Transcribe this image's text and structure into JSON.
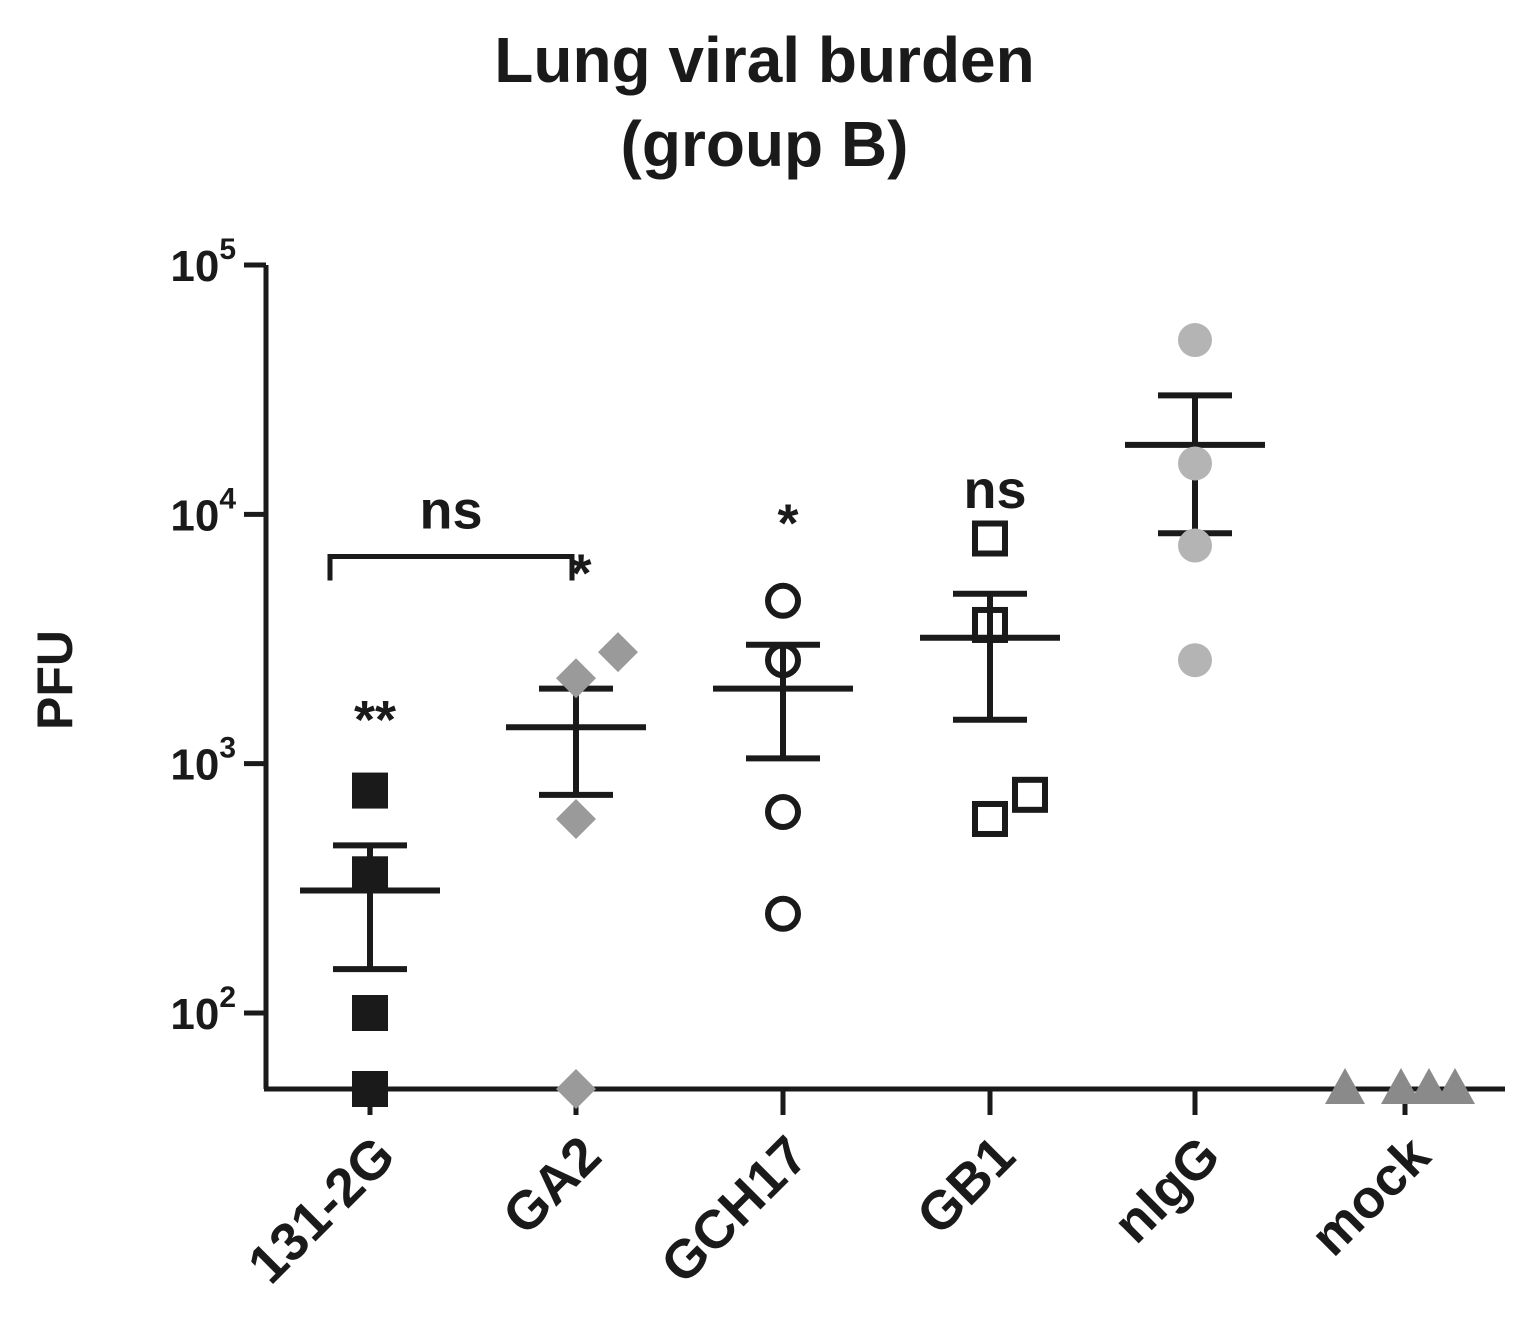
{
  "chart_data": {
    "type": "scatter",
    "title_lines": [
      "Lung viral burden",
      "(group B)"
    ],
    "ylabel": "PFU",
    "yscale": "log",
    "ylim": [
      50,
      100000
    ],
    "yticks": [
      {
        "base": "10",
        "exp": "2",
        "value": 100
      },
      {
        "base": "10",
        "exp": "3",
        "value": 1000
      },
      {
        "base": "10",
        "exp": "4",
        "value": 10000
      },
      {
        "base": "10",
        "exp": "5",
        "value": 100000
      }
    ],
    "categories": [
      "131-2G",
      "GA2",
      "GCH17",
      "GB1",
      "nIgG",
      "mock"
    ],
    "groups": [
      {
        "name": "131-2G",
        "marker": "filled-square",
        "color": "#1a1a1a",
        "points": [
          780,
          360,
          100,
          50
        ],
        "mean": 310,
        "sem": [
          150,
          470
        ],
        "significance": "**",
        "sig_y": 1500
      },
      {
        "name": "GA2",
        "marker": "filled-diamond",
        "color": "#9a9a9a",
        "points": [
          2800,
          2200,
          600,
          50
        ],
        "mean": 1400,
        "sem": [
          750,
          2000
        ],
        "significance": "*",
        "sig_y": 5800
      },
      {
        "name": "GCH17",
        "marker": "open-circle",
        "color": "#1a1a1a",
        "points": [
          4500,
          2600,
          640,
          250
        ],
        "mean": 2000,
        "sem": [
          1050,
          3000
        ],
        "significance": "*",
        "sig_y": 9200
      },
      {
        "name": "GB1",
        "marker": "open-square",
        "color": "#1a1a1a",
        "points": [
          8000,
          3600,
          750,
          600
        ],
        "mean": 3200,
        "sem": [
          1500,
          4800
        ],
        "significance": "ns",
        "sig_y": 12500
      },
      {
        "name": "nIgG",
        "marker": "filled-circle",
        "color": "#b4b4b4",
        "points": [
          50000,
          16000,
          7500,
          2600
        ],
        "mean": 19000,
        "sem": [
          8400,
          30000
        ],
        "significance": "",
        "sig_y": null
      },
      {
        "name": "mock",
        "marker": "filled-triangle",
        "color": "#8a8a8a",
        "points": [
          50,
          50,
          50,
          50
        ],
        "mean": null,
        "sem": null,
        "significance": "",
        "sig_y": null
      }
    ],
    "bracket": {
      "from": "131-2G",
      "to": "GA2",
      "label": "ns",
      "y": 8000
    },
    "grid": false,
    "legend": "none"
  }
}
